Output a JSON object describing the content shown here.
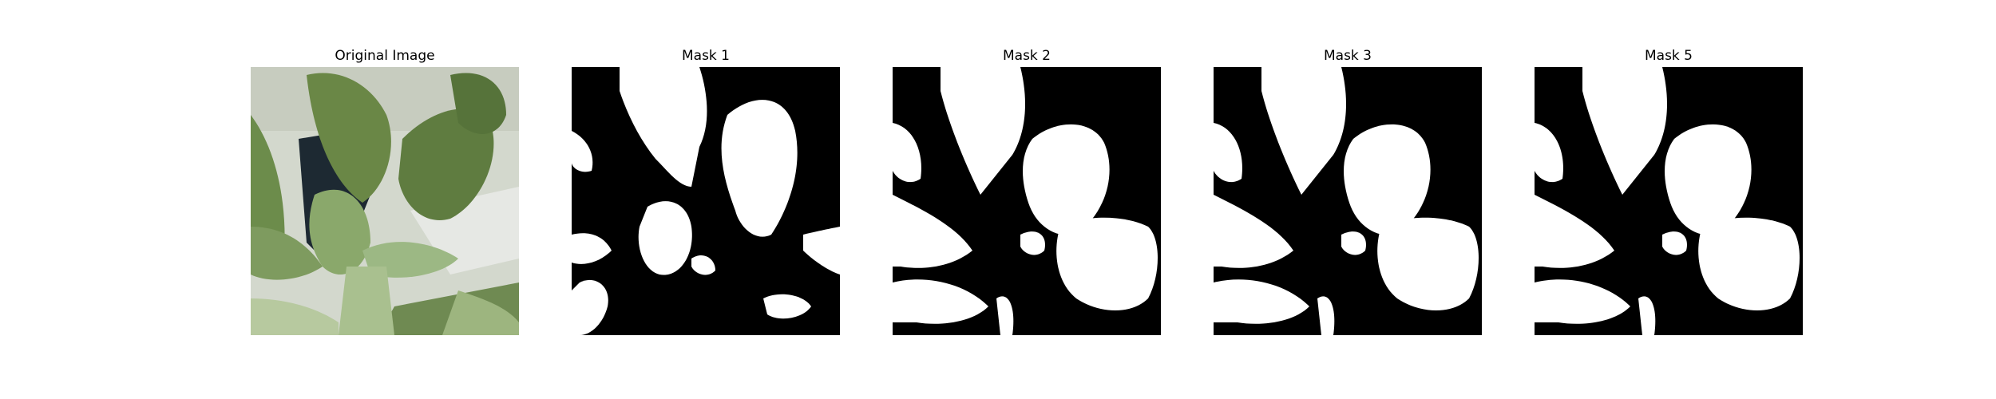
{
  "panels": [
    {
      "title": "Original Image"
    },
    {
      "title": "Mask 1"
    },
    {
      "title": "Mask 2"
    },
    {
      "title": "Mask 3"
    },
    {
      "title": "Mask 5"
    }
  ],
  "colors": {
    "background": "#ffffff",
    "mask_background": "#000000",
    "mask_foreground": "#ffffff",
    "leaf_dark": "#5d7a3e",
    "leaf_light": "#8fae72",
    "backdrop": "#cdd3c8",
    "shadow": "#1f2a33"
  }
}
